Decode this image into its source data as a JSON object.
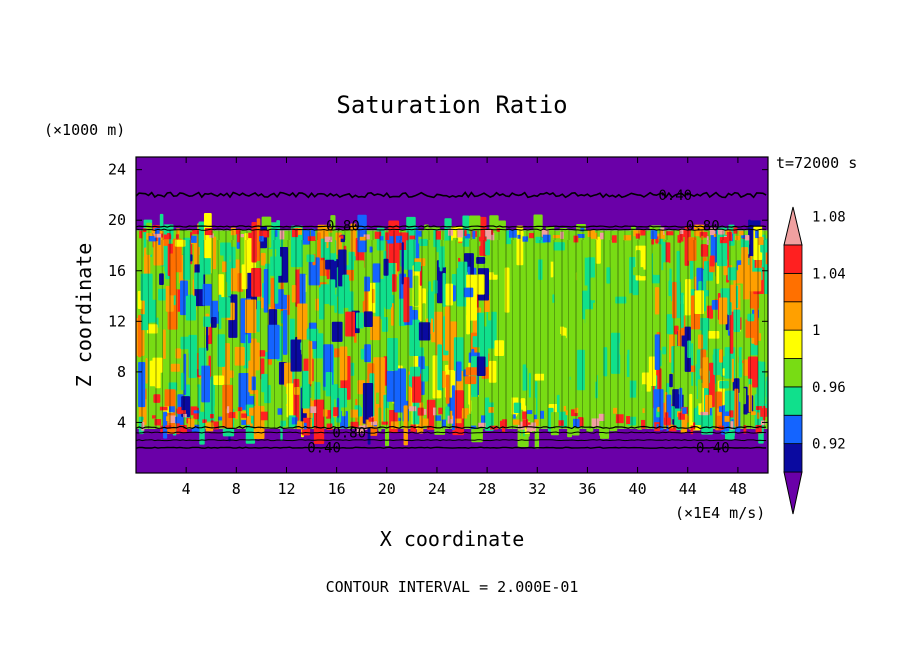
{
  "chart_data": {
    "type": "heatmap",
    "title": "Saturation Ratio",
    "xlabel": "X coordinate",
    "ylabel": "Z coordinate",
    "x_unit": "(×1E4 m/s)",
    "y_unit": "(×1000 m)",
    "time_label": "t=72000 s",
    "footer": "CONTOUR INTERVAL = 2.000E-01",
    "xlim": [
      0,
      50.4
    ],
    "ylim": [
      0,
      25
    ],
    "x_ticks": [
      "4",
      "8",
      "12",
      "16",
      "20",
      "24",
      "28",
      "32",
      "36",
      "40",
      "44",
      "48"
    ],
    "y_ticks": [
      "4",
      "8",
      "12",
      "16",
      "20",
      "24"
    ],
    "colorbar": {
      "levels": [
        "0.92",
        "0.96",
        "1",
        "1.04",
        "1.08"
      ],
      "colors": [
        "#6a00a8",
        "#0a0aa0",
        "#1464ff",
        "#10e08c",
        "#78dc14",
        "#ffff00",
        "#ffa000",
        "#ff7000",
        "#ff2020",
        "#f0a0a0"
      ]
    },
    "contour_labels": [
      {
        "text": "0.40",
        "x": 43,
        "y": 22.0
      },
      {
        "text": "0.80",
        "x": 16.5,
        "y": 19.6
      },
      {
        "text": "0.80",
        "x": 45.2,
        "y": 19.6
      },
      {
        "text": "0.80",
        "x": 17.0,
        "y": 3.2
      },
      {
        "text": "0.40",
        "x": 15.0,
        "y": 2.0
      },
      {
        "text": "0.40",
        "x": 46.0,
        "y": 2.0
      }
    ],
    "bands": [
      {
        "z": [
          0,
          3.5
        ],
        "level": "below 0.92"
      },
      {
        "z": [
          3.5,
          19.2
        ],
        "level": "0.92 to 1.10 (mostly 1.00–1.02)"
      },
      {
        "z": [
          19.2,
          25
        ],
        "level": "below 0.92"
      }
    ]
  }
}
